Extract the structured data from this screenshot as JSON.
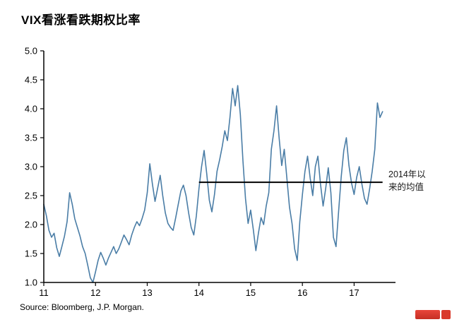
{
  "source": "Source: Bloomberg, J.P. Morgan.",
  "annotation": {
    "line1": "2014年以",
    "line2": "来的均值"
  },
  "chart_data": {
    "type": "line",
    "title": "VIX看涨看跌期权比率",
    "xlabel": "",
    "ylabel": "",
    "xlim": [
      11,
      17.8
    ],
    "ylim": [
      1.0,
      5.0
    ],
    "x_tick_labels": [
      "11",
      "12",
      "13",
      "14",
      "15",
      "16",
      "17"
    ],
    "y_tick_labels": [
      "1.0",
      "1.5",
      "2.0",
      "2.5",
      "3.0",
      "3.5",
      "4.0",
      "4.5",
      "5.0"
    ],
    "grid": false,
    "legend": "none",
    "line_color": "#4a7da6",
    "axis_color": "#000000",
    "mean_line": {
      "value": 2.73,
      "x_start": 14.0,
      "x_end": 17.55,
      "label": "2014年以来的均值",
      "color": "#000000"
    },
    "series": [
      {
        "name": "VIX看涨看跌期权比率",
        "points": [
          [
            11.0,
            2.35
          ],
          [
            11.05,
            2.15
          ],
          [
            11.1,
            1.9
          ],
          [
            11.15,
            1.78
          ],
          [
            11.2,
            1.85
          ],
          [
            11.25,
            1.6
          ],
          [
            11.3,
            1.45
          ],
          [
            11.35,
            1.62
          ],
          [
            11.4,
            1.8
          ],
          [
            11.45,
            2.05
          ],
          [
            11.5,
            2.55
          ],
          [
            11.55,
            2.35
          ],
          [
            11.6,
            2.1
          ],
          [
            11.65,
            1.95
          ],
          [
            11.7,
            1.8
          ],
          [
            11.75,
            1.62
          ],
          [
            11.8,
            1.5
          ],
          [
            11.85,
            1.3
          ],
          [
            11.9,
            1.08
          ],
          [
            11.95,
            1.0
          ],
          [
            12.0,
            1.18
          ],
          [
            12.05,
            1.38
          ],
          [
            12.1,
            1.52
          ],
          [
            12.15,
            1.42
          ],
          [
            12.2,
            1.3
          ],
          [
            12.25,
            1.42
          ],
          [
            12.3,
            1.52
          ],
          [
            12.35,
            1.62
          ],
          [
            12.4,
            1.5
          ],
          [
            12.45,
            1.58
          ],
          [
            12.5,
            1.7
          ],
          [
            12.55,
            1.82
          ],
          [
            12.6,
            1.74
          ],
          [
            12.65,
            1.65
          ],
          [
            12.7,
            1.82
          ],
          [
            12.75,
            1.95
          ],
          [
            12.8,
            2.05
          ],
          [
            12.85,
            1.98
          ],
          [
            12.9,
            2.1
          ],
          [
            12.95,
            2.25
          ],
          [
            13.0,
            2.55
          ],
          [
            13.05,
            3.05
          ],
          [
            13.1,
            2.7
          ],
          [
            13.15,
            2.4
          ],
          [
            13.2,
            2.62
          ],
          [
            13.25,
            2.85
          ],
          [
            13.3,
            2.5
          ],
          [
            13.35,
            2.2
          ],
          [
            13.4,
            2.02
          ],
          [
            13.45,
            1.95
          ],
          [
            13.5,
            1.9
          ],
          [
            13.55,
            2.12
          ],
          [
            13.6,
            2.35
          ],
          [
            13.65,
            2.58
          ],
          [
            13.7,
            2.68
          ],
          [
            13.75,
            2.5
          ],
          [
            13.8,
            2.2
          ],
          [
            13.85,
            1.95
          ],
          [
            13.9,
            1.82
          ],
          [
            13.95,
            2.15
          ],
          [
            14.0,
            2.62
          ],
          [
            14.05,
            3.0
          ],
          [
            14.1,
            3.28
          ],
          [
            14.15,
            2.88
          ],
          [
            14.2,
            2.42
          ],
          [
            14.25,
            2.22
          ],
          [
            14.3,
            2.52
          ],
          [
            14.35,
            2.92
          ],
          [
            14.4,
            3.12
          ],
          [
            14.45,
            3.35
          ],
          [
            14.5,
            3.62
          ],
          [
            14.55,
            3.45
          ],
          [
            14.6,
            3.85
          ],
          [
            14.65,
            4.35
          ],
          [
            14.7,
            4.05
          ],
          [
            14.75,
            4.4
          ],
          [
            14.8,
            3.9
          ],
          [
            14.85,
            3.1
          ],
          [
            14.9,
            2.45
          ],
          [
            14.95,
            2.02
          ],
          [
            15.0,
            2.25
          ],
          [
            15.05,
            1.92
          ],
          [
            15.1,
            1.55
          ],
          [
            15.15,
            1.85
          ],
          [
            15.2,
            2.12
          ],
          [
            15.25,
            2.0
          ],
          [
            15.3,
            2.32
          ],
          [
            15.35,
            2.55
          ],
          [
            15.4,
            3.3
          ],
          [
            15.45,
            3.62
          ],
          [
            15.5,
            4.05
          ],
          [
            15.55,
            3.5
          ],
          [
            15.6,
            3.02
          ],
          [
            15.65,
            3.3
          ],
          [
            15.7,
            2.8
          ],
          [
            15.75,
            2.3
          ],
          [
            15.8,
            2.02
          ],
          [
            15.85,
            1.58
          ],
          [
            15.9,
            1.38
          ],
          [
            15.95,
            2.05
          ],
          [
            16.0,
            2.52
          ],
          [
            16.05,
            2.92
          ],
          [
            16.1,
            3.18
          ],
          [
            16.15,
            2.8
          ],
          [
            16.2,
            2.5
          ],
          [
            16.25,
            3.0
          ],
          [
            16.3,
            3.18
          ],
          [
            16.35,
            2.7
          ],
          [
            16.4,
            2.32
          ],
          [
            16.45,
            2.62
          ],
          [
            16.5,
            2.98
          ],
          [
            16.55,
            2.55
          ],
          [
            16.6,
            1.78
          ],
          [
            16.65,
            1.62
          ],
          [
            16.7,
            2.22
          ],
          [
            16.75,
            2.82
          ],
          [
            16.8,
            3.28
          ],
          [
            16.85,
            3.5
          ],
          [
            16.9,
            3.02
          ],
          [
            16.95,
            2.72
          ],
          [
            17.0,
            2.52
          ],
          [
            17.05,
            2.82
          ],
          [
            17.1,
            3.0
          ],
          [
            17.15,
            2.7
          ],
          [
            17.2,
            2.45
          ],
          [
            17.25,
            2.35
          ],
          [
            17.3,
            2.62
          ],
          [
            17.35,
            2.92
          ],
          [
            17.4,
            3.3
          ],
          [
            17.45,
            4.1
          ],
          [
            17.5,
            3.85
          ],
          [
            17.55,
            3.95
          ]
        ]
      }
    ]
  }
}
